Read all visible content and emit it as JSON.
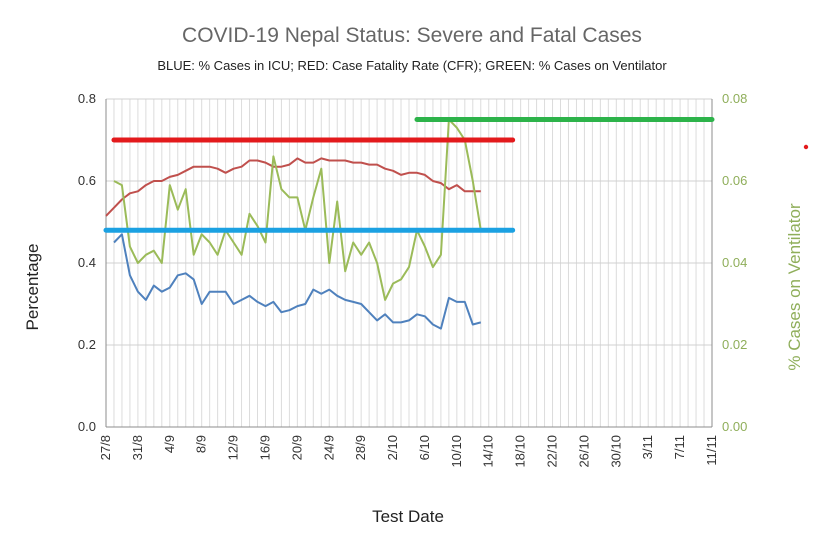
{
  "chart_data": {
    "type": "line",
    "title": "COVID-19 Nepal Status: Severe and Fatal Cases",
    "subtitle": "BLUE: % Cases in ICU; RED: Case Fatality Rate (CFR); GREEN: % Cases on Ventilator",
    "xlabel": "Test Date",
    "ylabel": "Percentage",
    "y2label": "% Cases on Ventilator",
    "x_start": "2020-08-27",
    "x_end": "2020-11-11",
    "x_tick_labels": [
      "27/8",
      "31/8",
      "4/9",
      "8/9",
      "12/9",
      "16/9",
      "20/9",
      "24/9",
      "28/9",
      "2/10",
      "6/10",
      "10/10",
      "14/10",
      "18/10",
      "22/10",
      "26/10",
      "30/10",
      "3/11",
      "7/11",
      "11/11"
    ],
    "ylim": [
      0,
      0.8
    ],
    "y_ticks": [
      "0.0",
      "0.2",
      "0.4",
      "0.6",
      "0.8"
    ],
    "y2lim": [
      0,
      0.08
    ],
    "y2_ticks": [
      "0.00",
      "0.02",
      "0.04",
      "0.06",
      "0.08"
    ],
    "grid": true,
    "colors": {
      "icu": "#4f81bd",
      "cfr": "#c0504d",
      "ventilator": "#9bbb59",
      "cfr_ref": "#e31a1c",
      "icu_ref": "#1ba1e2",
      "vent_ref": "#2db34a",
      "right_axis": "#8fae5a"
    },
    "series": [
      {
        "key": "icu",
        "axis": "left",
        "dates": [
          "2020-08-28",
          "2020-08-29",
          "2020-08-30",
          "2020-08-31",
          "2020-09-01",
          "2020-09-02",
          "2020-09-03",
          "2020-09-04",
          "2020-09-05",
          "2020-09-06",
          "2020-09-07",
          "2020-09-08",
          "2020-09-09",
          "2020-09-10",
          "2020-09-11",
          "2020-09-12",
          "2020-09-13",
          "2020-09-14",
          "2020-09-15",
          "2020-09-16",
          "2020-09-17",
          "2020-09-18",
          "2020-09-19",
          "2020-09-20",
          "2020-09-21",
          "2020-09-22",
          "2020-09-23",
          "2020-09-24",
          "2020-09-25",
          "2020-09-26",
          "2020-09-27",
          "2020-09-28",
          "2020-09-29",
          "2020-09-30",
          "2020-10-01",
          "2020-10-02",
          "2020-10-03",
          "2020-10-04",
          "2020-10-05",
          "2020-10-06",
          "2020-10-07",
          "2020-10-08",
          "2020-10-09",
          "2020-10-10",
          "2020-10-11",
          "2020-10-12",
          "2020-10-13"
        ],
        "values": [
          0.45,
          0.47,
          0.37,
          0.33,
          0.31,
          0.345,
          0.33,
          0.34,
          0.37,
          0.375,
          0.36,
          0.3,
          0.33,
          0.33,
          0.33,
          0.3,
          0.31,
          0.32,
          0.305,
          0.295,
          0.305,
          0.28,
          0.285,
          0.295,
          0.3,
          0.335,
          0.325,
          0.335,
          0.32,
          0.31,
          0.305,
          0.3,
          0.28,
          0.26,
          0.275,
          0.255,
          0.255,
          0.26,
          0.275,
          0.27,
          0.25,
          0.24,
          0.315,
          0.305,
          0.305,
          0.25,
          0.255
        ]
      },
      {
        "key": "cfr",
        "axis": "left",
        "dates": [
          "2020-08-27",
          "2020-08-28",
          "2020-08-29",
          "2020-08-30",
          "2020-08-31",
          "2020-09-01",
          "2020-09-02",
          "2020-09-03",
          "2020-09-04",
          "2020-09-05",
          "2020-09-06",
          "2020-09-07",
          "2020-09-08",
          "2020-09-09",
          "2020-09-10",
          "2020-09-11",
          "2020-09-12",
          "2020-09-13",
          "2020-09-14",
          "2020-09-15",
          "2020-09-16",
          "2020-09-17",
          "2020-09-18",
          "2020-09-19",
          "2020-09-20",
          "2020-09-21",
          "2020-09-22",
          "2020-09-23",
          "2020-09-24",
          "2020-09-25",
          "2020-09-26",
          "2020-09-27",
          "2020-09-28",
          "2020-09-29",
          "2020-09-30",
          "2020-10-01",
          "2020-10-02",
          "2020-10-03",
          "2020-10-04",
          "2020-10-05",
          "2020-10-06",
          "2020-10-07",
          "2020-10-08",
          "2020-10-09",
          "2020-10-10",
          "2020-10-11",
          "2020-10-12",
          "2020-10-13"
        ],
        "values": [
          0.515,
          0.535,
          0.555,
          0.57,
          0.575,
          0.59,
          0.6,
          0.6,
          0.61,
          0.615,
          0.625,
          0.635,
          0.635,
          0.635,
          0.63,
          0.62,
          0.63,
          0.635,
          0.65,
          0.65,
          0.645,
          0.635,
          0.635,
          0.64,
          0.655,
          0.645,
          0.645,
          0.655,
          0.65,
          0.65,
          0.65,
          0.645,
          0.645,
          0.64,
          0.64,
          0.63,
          0.625,
          0.615,
          0.62,
          0.62,
          0.615,
          0.6,
          0.595,
          0.58,
          0.59,
          0.575,
          0.575,
          0.575
        ]
      },
      {
        "key": "ventilator",
        "axis": "right",
        "dates": [
          "2020-08-28",
          "2020-08-29",
          "2020-08-30",
          "2020-08-31",
          "2020-09-01",
          "2020-09-02",
          "2020-09-03",
          "2020-09-04",
          "2020-09-05",
          "2020-09-06",
          "2020-09-07",
          "2020-09-08",
          "2020-09-09",
          "2020-09-10",
          "2020-09-11",
          "2020-09-12",
          "2020-09-13",
          "2020-09-14",
          "2020-09-15",
          "2020-09-16",
          "2020-09-17",
          "2020-09-18",
          "2020-09-19",
          "2020-09-20",
          "2020-09-21",
          "2020-09-22",
          "2020-09-23",
          "2020-09-24",
          "2020-09-25",
          "2020-09-26",
          "2020-09-27",
          "2020-09-28",
          "2020-09-29",
          "2020-09-30",
          "2020-10-01",
          "2020-10-02",
          "2020-10-03",
          "2020-10-04",
          "2020-10-05",
          "2020-10-06",
          "2020-10-07",
          "2020-10-08",
          "2020-10-09",
          "2020-10-10",
          "2020-10-11",
          "2020-10-12",
          "2020-10-13"
        ],
        "values": [
          0.06,
          0.059,
          0.044,
          0.04,
          0.042,
          0.043,
          0.04,
          0.059,
          0.053,
          0.058,
          0.042,
          0.047,
          0.045,
          0.042,
          0.048,
          0.045,
          0.042,
          0.052,
          0.049,
          0.045,
          0.066,
          0.058,
          0.056,
          0.056,
          0.048,
          0.056,
          0.063,
          0.04,
          0.055,
          0.038,
          0.045,
          0.042,
          0.045,
          0.04,
          0.031,
          0.035,
          0.036,
          0.039,
          0.048,
          0.044,
          0.039,
          0.042,
          0.075,
          0.073,
          0.07,
          0.06,
          0.048
        ]
      }
    ],
    "reference_lines": [
      {
        "key": "cfr_ref",
        "axis": "left",
        "value": 0.7,
        "from": "2020-08-28",
        "to": "2020-10-17"
      },
      {
        "key": "icu_ref",
        "axis": "left",
        "value": 0.48,
        "from": "2020-08-27",
        "to": "2020-10-17"
      },
      {
        "key": "vent_ref",
        "axis": "right",
        "value": 0.075,
        "from": "2020-10-05",
        "to": "2020-11-11"
      }
    ]
  }
}
